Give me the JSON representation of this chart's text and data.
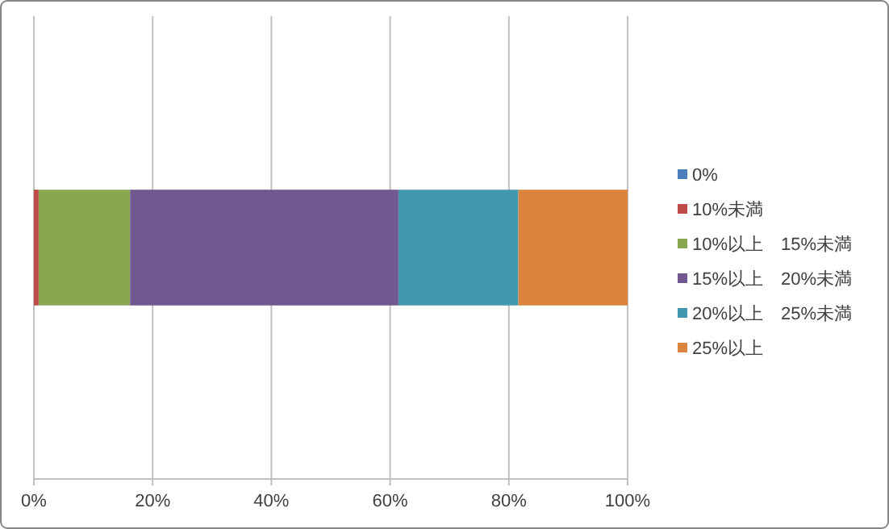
{
  "chart_data": {
    "type": "bar",
    "orientation": "horizontal",
    "stacked": true,
    "categories": [
      null
    ],
    "series": [
      {
        "name": "0%",
        "color": "#4a7ebb",
        "values": [
          0
        ]
      },
      {
        "name": "10%未満",
        "color": "#be4b48",
        "values": [
          0.8
        ]
      },
      {
        "name": "10%以上　15%未満",
        "color": "#8aa64e",
        "values": [
          15.4
        ]
      },
      {
        "name": "15%以上　20%未満",
        "color": "#71588f",
        "values": [
          45.2
        ]
      },
      {
        "name": "20%以上　25%未満",
        "color": "#4197ae",
        "values": [
          20.2
        ]
      },
      {
        "name": "25%以上",
        "color": "#db843d",
        "values": [
          18.4
        ]
      }
    ],
    "xlim": [
      0,
      100
    ],
    "xticks": [
      {
        "value": 0,
        "label": "0%"
      },
      {
        "value": 20,
        "label": "20%"
      },
      {
        "value": 40,
        "label": "40%"
      },
      {
        "value": 60,
        "label": "60%"
      },
      {
        "value": 80,
        "label": "80%"
      },
      {
        "value": 100,
        "label": "100%"
      }
    ],
    "grid": "x",
    "legend": "right"
  }
}
